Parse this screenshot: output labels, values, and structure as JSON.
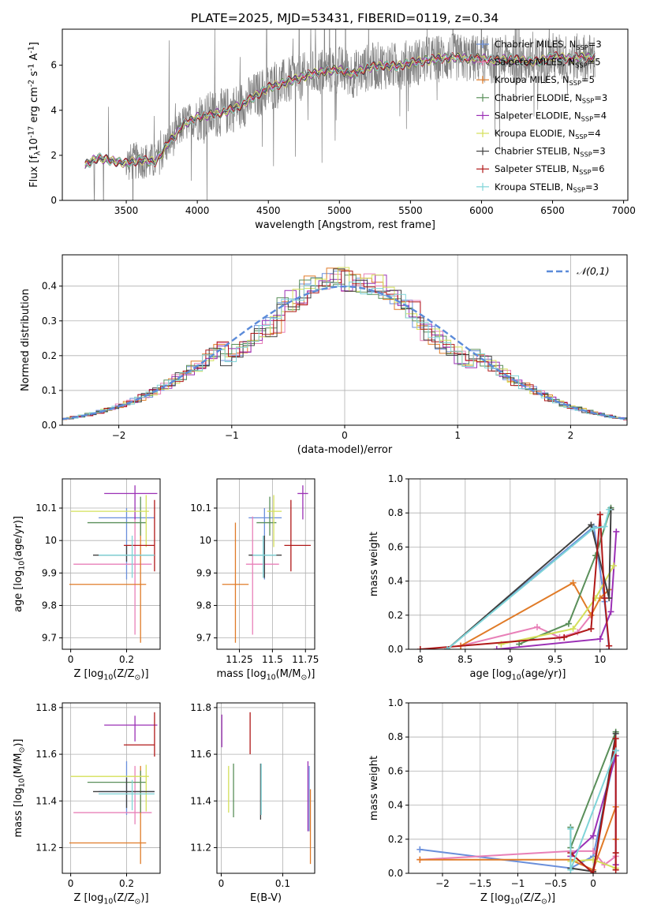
{
  "title": "PLATE=2025, MJD=53431, FIBERID=0119, z=0.34",
  "chart_data": [
    {
      "id": "spectrum",
      "type": "line",
      "xlabel": "wavelength [Angstrom, rest frame]",
      "ylabel": "Flux [f$_\\lambda$10$^{-17}$ erg cm$^{-2}$ s$^{-1}$ A$^{-1}$]",
      "xlim": [
        3050,
        7030
      ],
      "ylim": [
        0,
        7.6
      ],
      "xticks": [
        3500,
        4000,
        4500,
        5000,
        5500,
        6000,
        6500,
        7000
      ],
      "yticks": [
        0,
        2,
        4,
        6
      ],
      "data_color": "#808080",
      "continuum_anchors": {
        "x": [
          3210,
          3300,
          3400,
          3500,
          3600,
          3700,
          3750,
          3800,
          3850,
          3900,
          3950,
          4000,
          4100,
          4200,
          4300,
          4400,
          4500,
          4600,
          4700,
          4800,
          4900,
          5000,
          5100,
          5200,
          5300,
          5400,
          5500,
          5600,
          5700,
          5800,
          5900,
          6000,
          6100,
          6200,
          6300,
          6400,
          6500,
          6600,
          6700,
          6800
        ],
        "y": [
          1.55,
          1.9,
          1.75,
          1.65,
          1.8,
          1.7,
          2.1,
          2.6,
          2.9,
          3.4,
          3.5,
          3.7,
          3.8,
          3.95,
          4.2,
          4.6,
          5.0,
          5.2,
          5.4,
          5.6,
          5.75,
          5.8,
          5.6,
          5.9,
          6.0,
          5.95,
          6.1,
          6.2,
          6.3,
          6.35,
          6.3,
          6.3,
          6.2,
          6.3,
          6.2,
          6.15,
          6.4,
          6.3,
          6.35,
          6.35
        ]
      },
      "legend": [
        {
          "label": "Chabrier MILES, N$_{SSP}$=3",
          "color": "#6a8fdb"
        },
        {
          "label": "Salpeter MILES, N$_{SSP}$=5",
          "color": "#e880b8"
        },
        {
          "label": "Kroupa MILES, N$_{SSP}$=5",
          "color": "#e07b28"
        },
        {
          "label": "Chabrier ELODIE, N$_{SSP}$=3",
          "color": "#5a8f5a"
        },
        {
          "label": "Salpeter ELODIE, N$_{SSP}$=4",
          "color": "#9b30b5"
        },
        {
          "label": "Kroupa ELODIE, N$_{SSP}$=4",
          "color": "#d4e05a"
        },
        {
          "label": "Chabrier STELIB, N$_{SSP}$=3",
          "color": "#404040"
        },
        {
          "label": "Salpeter STELIB, N$_{SSP}$=6",
          "color": "#b01818"
        },
        {
          "label": "Kroupa STELIB, N$_{SSP}$=3",
          "color": "#7fd4d8"
        }
      ]
    },
    {
      "id": "residuals",
      "type": "bar",
      "xlabel": "(data-model)/error",
      "ylabel": "Normed distribution",
      "xlim": [
        -2.5,
        2.5
      ],
      "ylim": [
        0,
        0.49
      ],
      "xticks": [
        -2,
        -1,
        0,
        1,
        2
      ],
      "yticks": [
        0.0,
        0.1,
        0.2,
        0.3,
        0.4
      ],
      "legend_label": "$\\mathcal{N}(0,1)$",
      "normal_curve": {
        "color": "#5b8bd9",
        "dash": true
      },
      "bin_width": 0.1,
      "colors": [
        "#6a8fdb",
        "#e880b8",
        "#e07b28",
        "#5a8f5a",
        "#9b30b5",
        "#d4e05a",
        "#404040",
        "#b01818",
        "#7fd4d8"
      ]
    },
    {
      "id": "age_vs_Z",
      "type": "scatter",
      "xlabel": "Z [log$_{10}$(Z/Z$_\\odot$)]",
      "ylabel": "age  [log$_{10}$(age/yr)]",
      "xlim": [
        -0.03,
        0.32
      ],
      "ylim": [
        9.665,
        10.19
      ],
      "xticks": [
        0.0,
        0.2
      ],
      "yticks": [
        9.7,
        9.8,
        9.9,
        10.0,
        10.1
      ],
      "series": [
        {
          "x": 0.2,
          "xerr": [
            0.1,
            0.1
          ],
          "y": 10.07,
          "yerr": [
            0.19,
            0.03
          ],
          "color": "#6a8fdb"
        },
        {
          "x": 0.23,
          "xerr": [
            0.22,
            0.06
          ],
          "y": 9.927,
          "yerr": [
            0.217,
            0.147
          ],
          "color": "#e880b8"
        },
        {
          "x": 0.25,
          "xerr": [
            0.255,
            0.02
          ],
          "y": 9.865,
          "yerr": [
            0.18,
            0.19
          ],
          "color": "#e07b28"
        },
        {
          "x": 0.25,
          "xerr": [
            0.19,
            0.02
          ],
          "y": 10.055,
          "yerr": [
            0.04,
            0.08
          ],
          "color": "#5a8f5a"
        },
        {
          "x": 0.23,
          "xerr": [
            0.11,
            0.08
          ],
          "y": 10.145,
          "yerr": [
            0.08,
            0.025
          ],
          "color": "#9b30b5"
        },
        {
          "x": 0.27,
          "xerr": [
            0.27,
            0.01
          ],
          "y": 10.09,
          "yerr": [
            0.11,
            0.05
          ],
          "color": "#d4e05a"
        },
        {
          "x": 0.2,
          "xerr": [
            0.12,
            0.1
          ],
          "y": 9.955,
          "yerr": [
            0.02,
            0.03
          ],
          "color": "#404040"
        },
        {
          "x": 0.3,
          "xerr": [
            0.11,
            0.0
          ],
          "y": 9.985,
          "yerr": [
            0.08,
            0.14
          ],
          "color": "#b01818"
        },
        {
          "x": 0.22,
          "xerr": [
            0.12,
            0.08
          ],
          "y": 9.955,
          "yerr": [
            0.07,
            0.06
          ],
          "color": "#7fd4d8"
        }
      ]
    },
    {
      "id": "age_vs_mass",
      "type": "scatter",
      "xlabel": "mass [log$_{10}$(M/M$_\\odot$)]",
      "ylabel": "",
      "xlim": [
        11.08,
        11.82
      ],
      "ylim": [
        9.665,
        10.19
      ],
      "xticks": [
        11.25,
        11.5,
        11.75
      ],
      "yticks": [
        9.7,
        9.8,
        9.9,
        10.0,
        10.1
      ],
      "series": [
        {
          "x": 11.44,
          "xerr": [
            0.12,
            0.13
          ],
          "y": 10.07,
          "yerr": [
            0.19,
            0.03
          ],
          "color": "#6a8fdb"
        },
        {
          "x": 11.35,
          "xerr": [
            0.05,
            0.2
          ],
          "y": 9.927,
          "yerr": [
            0.217,
            0.147
          ],
          "color": "#e880b8"
        },
        {
          "x": 11.22,
          "xerr": [
            0.1,
            0.1
          ],
          "y": 9.865,
          "yerr": [
            0.18,
            0.19
          ],
          "color": "#e07b28"
        },
        {
          "x": 11.48,
          "xerr": [
            0.1,
            0.05
          ],
          "y": 10.055,
          "yerr": [
            0.04,
            0.08
          ],
          "color": "#5a8f5a"
        },
        {
          "x": 11.73,
          "xerr": [
            0.04,
            0.04
          ],
          "y": 10.145,
          "yerr": [
            0.08,
            0.025
          ],
          "color": "#9b30b5"
        },
        {
          "x": 11.51,
          "xerr": [
            0.05,
            0.06
          ],
          "y": 10.09,
          "yerr": [
            0.11,
            0.05
          ],
          "color": "#d4e05a"
        },
        {
          "x": 11.44,
          "xerr": [
            0.12,
            0.13
          ],
          "y": 9.955,
          "yerr": [
            0.07,
            0.06
          ],
          "color": "#404040"
        },
        {
          "x": 11.64,
          "xerr": [
            0.05,
            0.15
          ],
          "y": 9.985,
          "yerr": [
            0.08,
            0.14
          ],
          "color": "#b01818"
        },
        {
          "x": 11.43,
          "xerr": [
            0.08,
            0.1
          ],
          "y": 9.955,
          "yerr": [
            0.07,
            0.06
          ],
          "color": "#7fd4d8"
        }
      ]
    },
    {
      "id": "weight_vs_age",
      "type": "line",
      "xlabel": "age  [log$_{10}$(age/yr)]",
      "ylabel": "mass weight",
      "xlim": [
        7.87,
        10.3
      ],
      "ylim": [
        0,
        1.0
      ],
      "xticks": [
        8.0,
        8.5,
        9.0,
        9.5,
        10.0
      ],
      "yticks": [
        0.0,
        0.2,
        0.4,
        0.6,
        0.8,
        1.0
      ],
      "series": [
        {
          "color": "#6a8fdb",
          "x": [
            8.3,
            9.93,
            10.05,
            10.1
          ],
          "y": [
            0.0,
            0.72,
            0.28,
            0.0
          ]
        },
        {
          "color": "#e880b8",
          "x": [
            8.45,
            9.3,
            9.55,
            9.75,
            9.9
          ],
          "y": [
            0.02,
            0.13,
            0.07,
            0.1,
            0.2
          ]
        },
        {
          "color": "#e07b28",
          "x": [
            8.45,
            9.7,
            9.9,
            10.0,
            10.1
          ],
          "y": [
            0.02,
            0.39,
            0.2,
            0.3,
            0.35
          ]
        },
        {
          "color": "#5a8f5a",
          "x": [
            9.1,
            9.65,
            9.95,
            10.12
          ],
          "y": [
            0.03,
            0.15,
            0.55,
            0.83
          ]
        },
        {
          "color": "#9b30b5",
          "x": [
            8.85,
            10.0,
            10.12,
            10.18
          ],
          "y": [
            0.0,
            0.06,
            0.22,
            0.69
          ]
        },
        {
          "color": "#d4e05a",
          "x": [
            8.9,
            9.7,
            9.95,
            10.15
          ],
          "y": [
            0.03,
            0.12,
            0.3,
            0.49
          ]
        },
        {
          "color": "#404040",
          "x": [
            8.3,
            9.9,
            10.1,
            10.12
          ],
          "y": [
            0.0,
            0.73,
            0.3,
            0.82
          ]
        },
        {
          "color": "#b01818",
          "x": [
            8.0,
            9.6,
            9.9,
            10.0,
            10.05,
            10.1
          ],
          "y": [
            0.0,
            0.07,
            0.12,
            0.79,
            0.3,
            0.02
          ]
        },
        {
          "color": "#7fd4d8",
          "x": [
            8.3,
            9.93,
            10.05,
            10.1
          ],
          "y": [
            0.0,
            0.71,
            0.72,
            0.82
          ]
        }
      ]
    },
    {
      "id": "mass_vs_Z",
      "type": "scatter",
      "xlabel": "Z [log$_{10}$(Z/Z$_\\odot$)]",
      "ylabel": "mass [log$_{10}$(M/M$_\\odot$)]",
      "xlim": [
        -0.03,
        0.32
      ],
      "ylim": [
        11.09,
        11.82
      ],
      "xticks": [
        0.0,
        0.2
      ],
      "yticks": [
        11.2,
        11.4,
        11.6,
        11.8
      ],
      "series": [
        {
          "x": 0.2,
          "xerr": [
            0.1,
            0.1
          ],
          "y": 11.44,
          "yerr": [
            0.1,
            0.13
          ],
          "color": "#6a8fdb"
        },
        {
          "x": 0.23,
          "xerr": [
            0.22,
            0.06
          ],
          "y": 11.35,
          "yerr": [
            0.05,
            0.2
          ],
          "color": "#e880b8"
        },
        {
          "x": 0.25,
          "xerr": [
            0.255,
            0.02
          ],
          "y": 11.22,
          "yerr": [
            0.09,
            0.33
          ],
          "color": "#e07b28"
        },
        {
          "x": 0.25,
          "xerr": [
            0.19,
            0.02
          ],
          "y": 11.48,
          "yerr": [
            0.13,
            0.05
          ],
          "color": "#5a8f5a"
        },
        {
          "x": 0.23,
          "xerr": [
            0.11,
            0.08
          ],
          "y": 11.725,
          "yerr": [
            0.07,
            0.04
          ],
          "color": "#9b30b5"
        },
        {
          "x": 0.27,
          "xerr": [
            0.27,
            0.01
          ],
          "y": 11.505,
          "yerr": [
            0.15,
            0.05
          ],
          "color": "#d4e05a"
        },
        {
          "x": 0.2,
          "xerr": [
            0.12,
            0.1
          ],
          "y": 11.44,
          "yerr": [
            0.07,
            0.06
          ],
          "color": "#404040"
        },
        {
          "x": 0.3,
          "xerr": [
            0.11,
            0.0
          ],
          "y": 11.64,
          "yerr": [
            0.05,
            0.14
          ],
          "color": "#b01818"
        },
        {
          "x": 0.22,
          "xerr": [
            0.12,
            0.08
          ],
          "y": 11.43,
          "yerr": [
            0.07,
            0.06
          ],
          "color": "#7fd4d8"
        }
      ]
    },
    {
      "id": "mass_vs_ebv",
      "type": "scatter",
      "xlabel": "E(B-V)",
      "ylabel": "",
      "xlim": [
        -0.007,
        0.152
      ],
      "ylim": [
        11.09,
        11.82
      ],
      "xticks": [
        0.0,
        0.1
      ],
      "yticks": [
        11.2,
        11.4,
        11.6,
        11.8
      ],
      "series": [
        {
          "x": 0.001,
          "y": 11.7,
          "yerr": [
            0.07,
            0.07
          ],
          "color": "#9b30b5"
        },
        {
          "x": 0.012,
          "y": 11.45,
          "yerr": [
            0.1,
            0.1
          ],
          "color": "#d4e05a"
        },
        {
          "x": 0.02,
          "y": 11.44,
          "yerr": [
            0.11,
            0.12
          ],
          "color": "#5a8f5a"
        },
        {
          "x": 0.047,
          "y": 11.69,
          "yerr": [
            0.09,
            0.09
          ],
          "color": "#b01818"
        },
        {
          "x": 0.064,
          "y": 11.44,
          "yerr": [
            0.12,
            0.12
          ],
          "color": "#404040"
        },
        {
          "x": 0.065,
          "y": 11.44,
          "yerr": [
            0.1,
            0.12
          ],
          "color": "#7fd4d8"
        },
        {
          "x": 0.141,
          "y": 11.42,
          "yerr": [
            0.15,
            0.15
          ],
          "color": "#9b30b5"
        },
        {
          "x": 0.143,
          "y": 11.41,
          "yerr": [
            0.14,
            0.14
          ],
          "color": "#6a8fdb"
        },
        {
          "x": 0.145,
          "y": 11.29,
          "yerr": [
            0.16,
            0.16
          ],
          "color": "#e07b28"
        }
      ]
    },
    {
      "id": "weight_vs_Z",
      "type": "line",
      "xlabel": "Z [log$_{10}$(Z/Z$_\\odot$)]",
      "ylabel": "mass weight",
      "xlim": [
        -2.45,
        0.45
      ],
      "ylim": [
        0,
        1.0
      ],
      "xticks": [
        -2.0,
        -1.5,
        -1.0,
        -0.5,
        0.0
      ],
      "yticks": [
        0.0,
        0.2,
        0.4,
        0.6,
        0.8,
        1.0
      ],
      "series": [
        {
          "color": "#6a8fdb",
          "x": [
            -2.3,
            -0.3,
            0.0,
            0.3
          ],
          "y": [
            0.14,
            0.03,
            0.1,
            0.72
          ]
        },
        {
          "color": "#e880b8",
          "x": [
            -2.3,
            -0.3,
            0.0,
            0.15,
            0.3
          ],
          "y": [
            0.08,
            0.13,
            0.13,
            0.05,
            0.1
          ]
        },
        {
          "color": "#e07b28",
          "x": [
            -2.3,
            -0.3,
            0.0,
            0.3,
            0.3
          ],
          "y": [
            0.08,
            0.08,
            0.02,
            0.39,
            0.2
          ]
        },
        {
          "color": "#5a8f5a",
          "x": [
            -0.3,
            -0.3,
            0.3
          ],
          "y": [
            0.27,
            0.15,
            0.83
          ]
        },
        {
          "color": "#9b30b5",
          "x": [
            -0.3,
            0.0,
            0.3,
            0.3
          ],
          "y": [
            0.1,
            0.22,
            0.69,
            0.05
          ]
        },
        {
          "color": "#d4e05a",
          "x": [
            -0.3,
            0.0,
            0.3
          ],
          "y": [
            0.07,
            0.08,
            0.03
          ]
        },
        {
          "color": "#404040",
          "x": [
            -0.3,
            0.0,
            0.3
          ],
          "y": [
            0.03,
            0.01,
            0.82
          ]
        },
        {
          "color": "#b01818",
          "x": [
            -0.3,
            0.0,
            0.3,
            0.3,
            0.3
          ],
          "y": [
            0.12,
            0.0,
            0.79,
            0.12,
            0.02
          ]
        },
        {
          "color": "#7fd4d8",
          "x": [
            -0.3,
            -0.3,
            0.3
          ],
          "y": [
            0.26,
            0.02,
            0.72
          ]
        }
      ]
    }
  ]
}
